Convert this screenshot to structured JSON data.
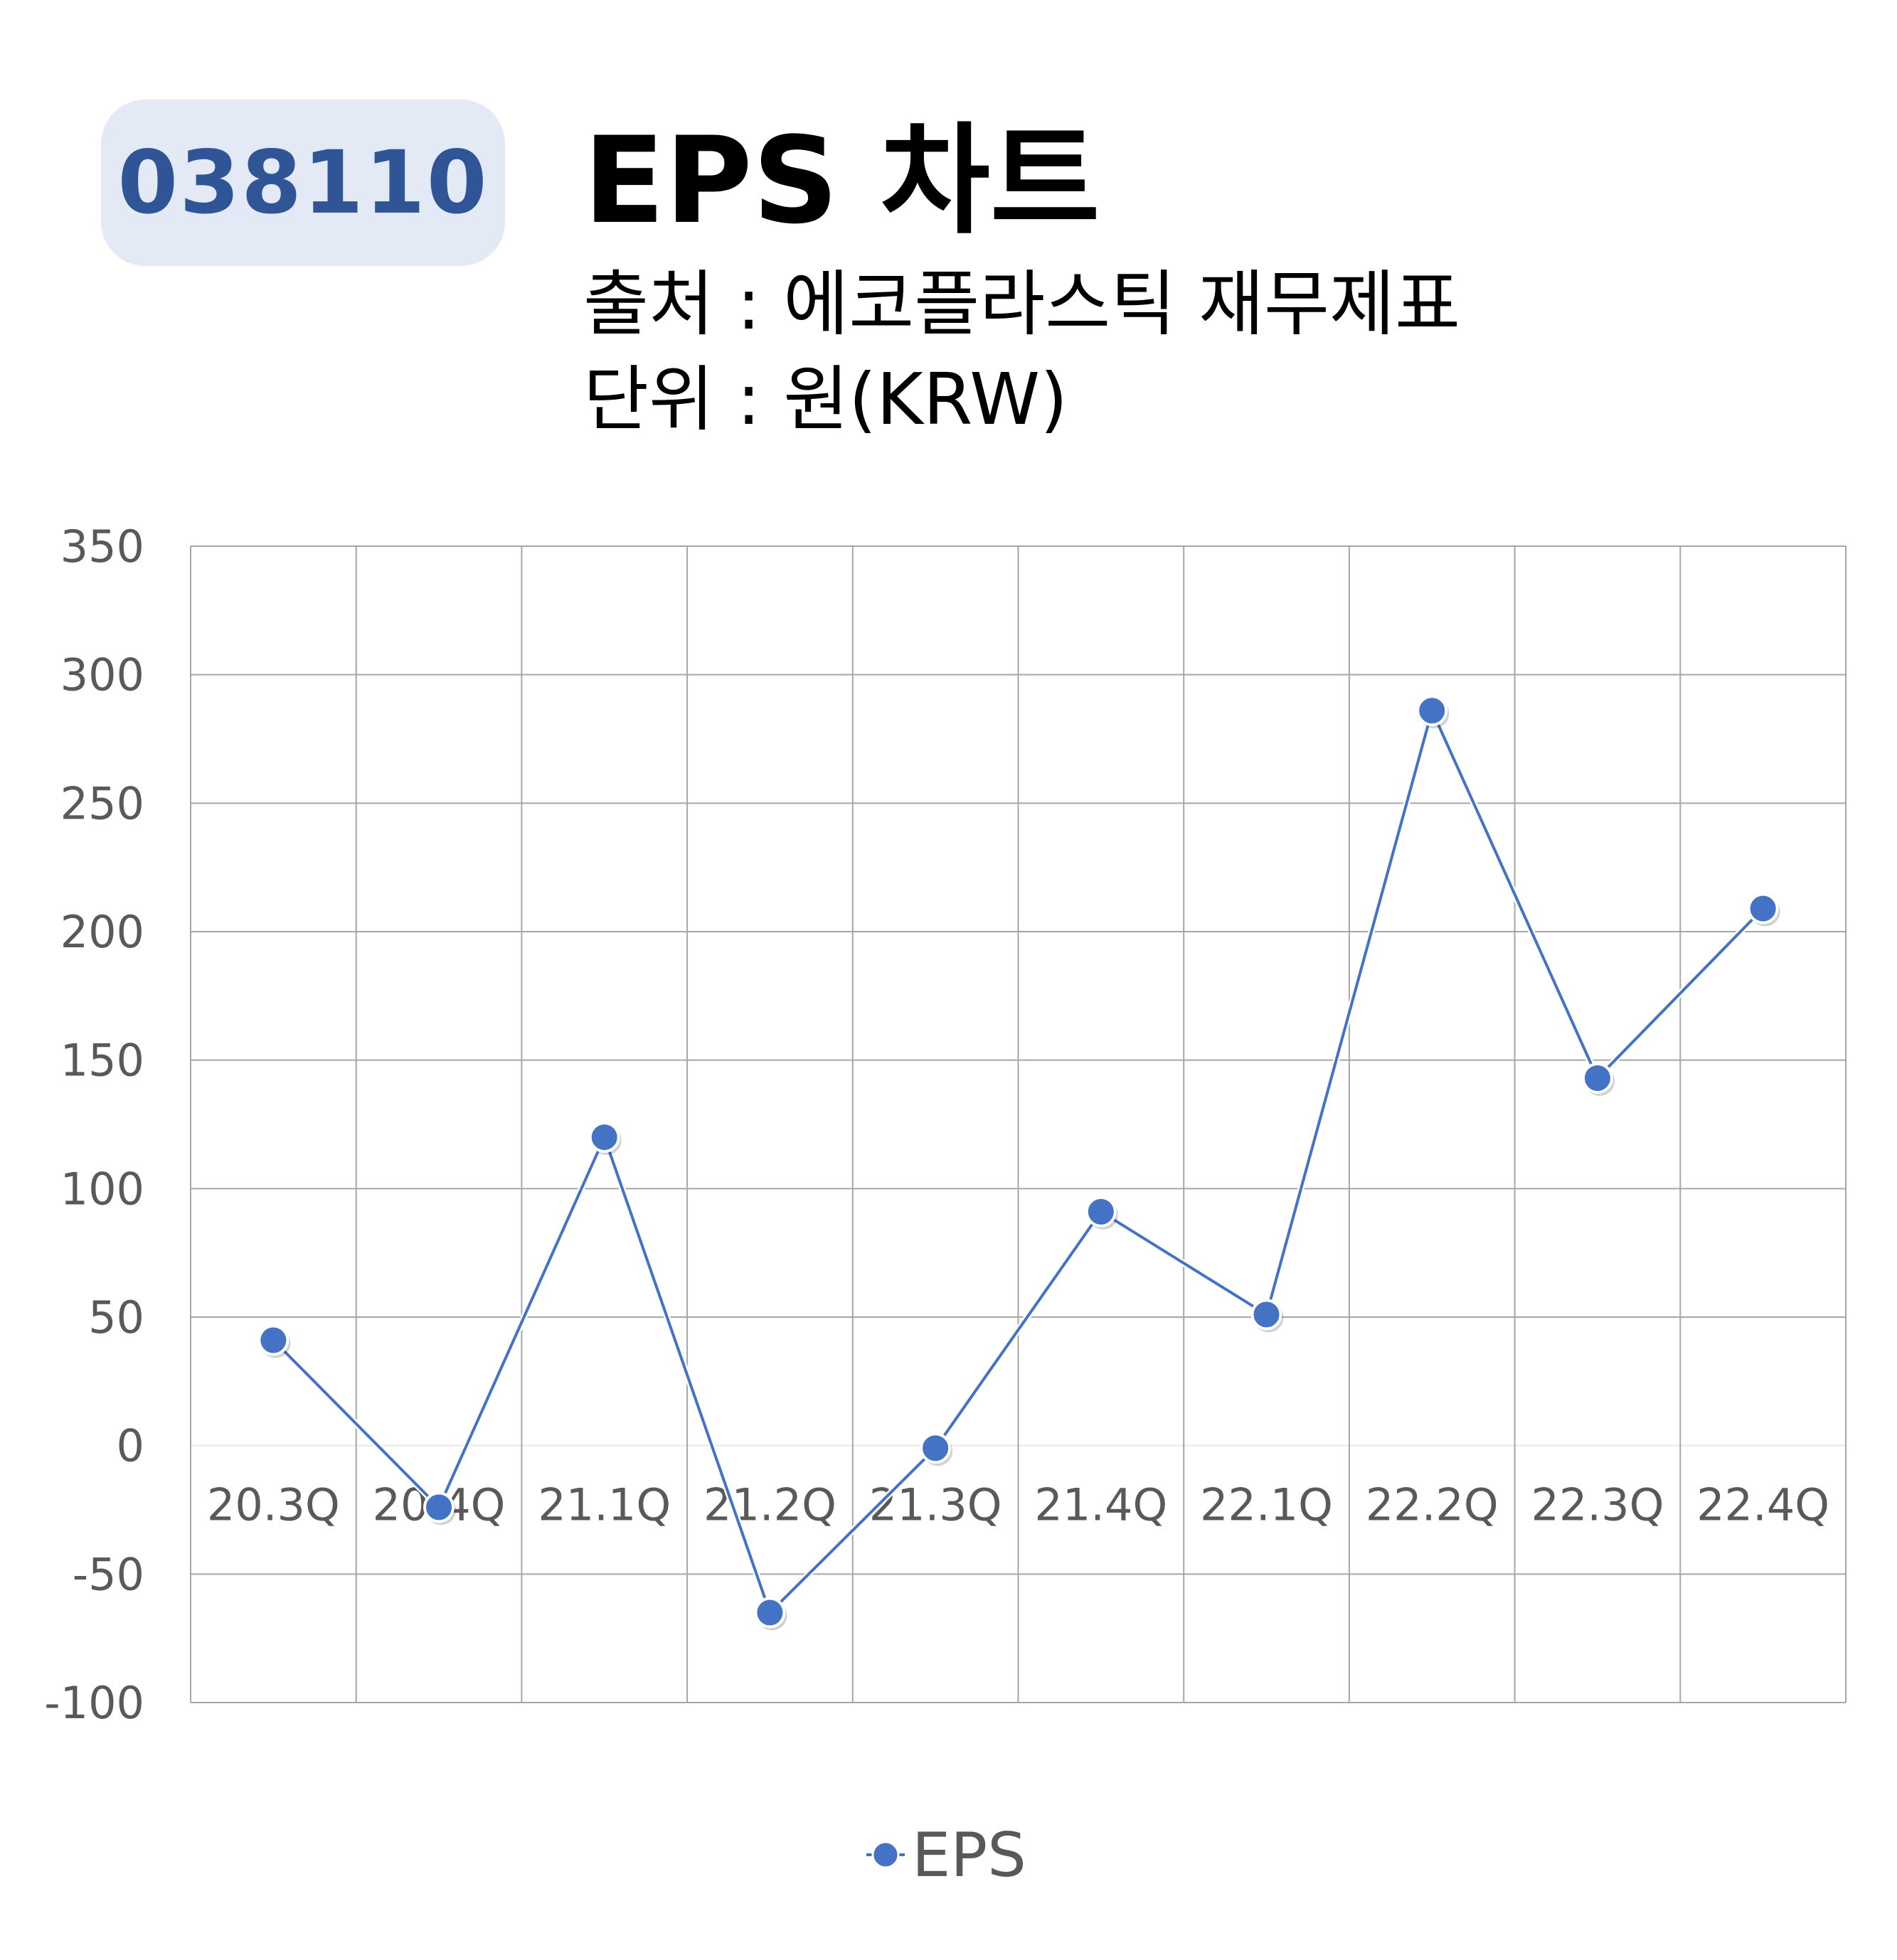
{
  "badge": {
    "code": "038110"
  },
  "header": {
    "title": "EPS 차트",
    "source": "출처 : 에코플라스틱 재무제표",
    "unit": "단위 : 원(KRW)"
  },
  "chart_data": {
    "type": "line",
    "categories": [
      "20.3Q",
      "20.4Q",
      "21.1Q",
      "21.2Q",
      "21.3Q",
      "21.4Q",
      "22.1Q",
      "22.2Q",
      "22.3Q",
      "22.4Q"
    ],
    "series": [
      {
        "name": "EPS",
        "values": [
          41,
          -24,
          120,
          -65,
          -1,
          91,
          51,
          286,
          143,
          209
        ],
        "color": "#4472c4"
      }
    ],
    "yticks": [
      350,
      300,
      250,
      200,
      150,
      100,
      50,
      0,
      -50,
      -100
    ],
    "ylim": [
      -100,
      350
    ],
    "grid": true,
    "legend": "bottom-center"
  }
}
